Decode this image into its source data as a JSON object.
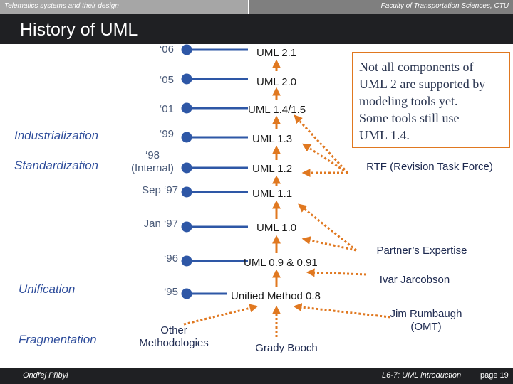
{
  "header": {
    "course": "Telematics systems and their design",
    "faculty": "Faculty of Transportation Sciences, CTU"
  },
  "slide": {
    "title": "History of UML"
  },
  "phases": [
    "Industrialization",
    "Standardization",
    "Unification",
    "Fragmentation"
  ],
  "timeline": [
    {
      "label": "‘06",
      "version": "UML 2.1"
    },
    {
      "label": "‘05",
      "version": "UML 2.0"
    },
    {
      "label": "‘01",
      "version": "UML 1.4/1.5"
    },
    {
      "label": "‘99",
      "version": "UML 1.3"
    },
    {
      "label": "‘98\n(Internal)",
      "version": "UML 1.2"
    },
    {
      "label": "Sep ‘97",
      "version": "UML 1.1"
    },
    {
      "label": "Jan ‘97",
      "version": "UML 1.0"
    },
    {
      "label": "‘96",
      "version": "UML 0.9 & 0.91"
    },
    {
      "label": "‘95",
      "version": "Unified Method 0.8"
    }
  ],
  "sources": {
    "other": "Other\nMethodologies",
    "booch": "Grady Booch",
    "rumbaugh": "Jim Rumbaugh\n(OMT)",
    "jacobson": "Ivar Jarcobson",
    "partners": "Partner’s Expertise",
    "rtf": "RTF (Revision Task Force)"
  },
  "note": "Not all components of\nUML 2 are supported by\nmodeling tools yet.\nSome tools still use\nUML 1.4.",
  "footer": {
    "author": "Ondřej Přibyl",
    "lecture": "L6-7: UML introduction",
    "page": "page 19"
  },
  "colors": {
    "timeline_blue": "#2e57a6",
    "arrow_orange": "#e07820",
    "phase_text": "#2f4e9c",
    "dark_bar": "#1f2023"
  }
}
